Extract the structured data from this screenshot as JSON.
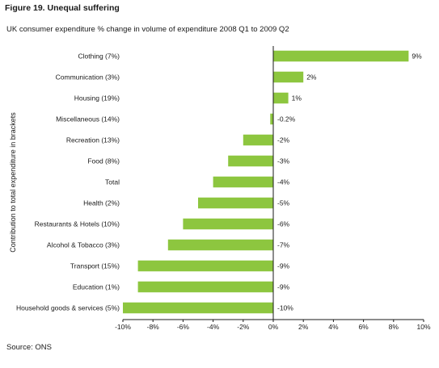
{
  "figure": {
    "title": "Figure 19. Unequal suffering",
    "subtitle": "UK consumer expenditure % change in volume of expenditure 2008 Q1 to 2009 Q2",
    "source": "Source: ONS"
  },
  "chart_data": {
    "type": "bar",
    "orientation": "horizontal",
    "categories": [
      "Clothing (7%)",
      "Communication (3%)",
      "Housing (19%)",
      "Miscellaneous (14%)",
      "Recreation (13%)",
      "Food (8%)",
      "Total",
      "Health (2%)",
      "Restaurants & Hotels (10%)",
      "Alcohol & Tobacco (3%)",
      "Transport (15%)",
      "Education (1%)",
      "Household goods & services (5%)"
    ],
    "values": [
      9,
      2,
      1,
      -0.2,
      -2,
      -3,
      -4,
      -5,
      -6,
      -7,
      -9,
      -9,
      -10
    ],
    "value_labels": [
      "9%",
      "2%",
      "1%",
      "-0.2%",
      "-2%",
      "-3%",
      "-4%",
      "-5%",
      "-6%",
      "-7%",
      "-9%",
      "-9%",
      "-10%"
    ],
    "xlim": [
      -10,
      10
    ],
    "xticks": [
      "-10%",
      "-8%",
      "-6%",
      "-4%",
      "-2%",
      "0%",
      "2%",
      "4%",
      "6%",
      "8%",
      "10%"
    ],
    "ylabel": "Contribution to total expenditure in brackets",
    "bar_color": "#8dc63f",
    "grid": false,
    "legend": "none"
  }
}
